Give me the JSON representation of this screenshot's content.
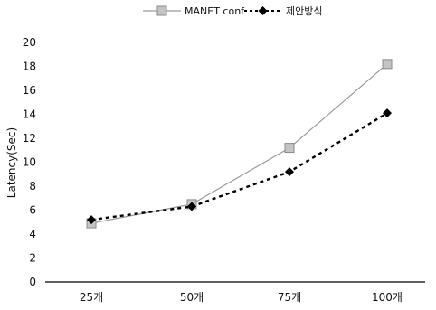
{
  "chart_data": {
    "type": "line",
    "categories": [
      "25개",
      "50개",
      "75개",
      "100개"
    ],
    "series": [
      {
        "name": "MANET conf",
        "values": [
          4.9,
          6.5,
          11.2,
          18.2
        ],
        "color": "#9a9a9a",
        "line": "solid",
        "marker": "square-grey"
      },
      {
        "name": "제안방식",
        "values": [
          5.2,
          6.3,
          9.2,
          14.1
        ],
        "color": "#000000",
        "line": "dotted",
        "marker": "diamond-black"
      }
    ],
    "ylabel": "Latency(Sec)",
    "xlabel": "",
    "ylim": [
      0,
      20
    ],
    "yticks": [
      0,
      2,
      4,
      6,
      8,
      10,
      12,
      14,
      16,
      18,
      20
    ],
    "grid": false,
    "legend": "top-center"
  }
}
